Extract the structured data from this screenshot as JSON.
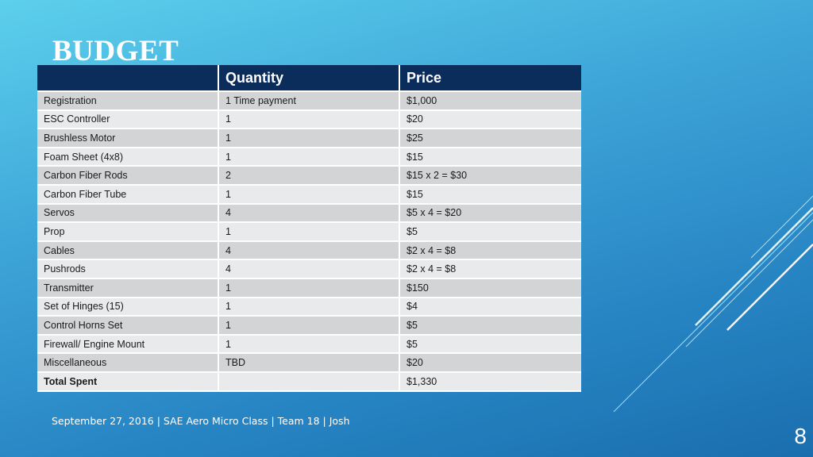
{
  "slide": {
    "title": "BUDGET",
    "footer": "September 27, 2016  |  SAE Aero Micro Class  |  Team 18 | Josh",
    "page_number": "8"
  },
  "table": {
    "headers": [
      "",
      "Quantity",
      "Price"
    ],
    "rows": [
      {
        "item": "Registration",
        "quantity": "1 Time payment",
        "price": "$1,000"
      },
      {
        "item": "ESC Controller",
        "quantity": "1",
        "price": "$20"
      },
      {
        "item": "Brushless Motor",
        "quantity": "1",
        "price": "$25"
      },
      {
        "item": "Foam Sheet (4x8)",
        "quantity": "1",
        "price": "$15"
      },
      {
        "item": "Carbon Fiber Rods",
        "quantity": "2",
        "price": "$15 x 2 = $30"
      },
      {
        "item": "Carbon Fiber Tube",
        "quantity": "1",
        "price": "$15"
      },
      {
        "item": "Servos",
        "quantity": "4",
        "price": "$5 x 4 = $20"
      },
      {
        "item": "Prop",
        "quantity": "1",
        "price": "$5"
      },
      {
        "item": "Cables",
        "quantity": "4",
        "price": "$2 x 4 = $8"
      },
      {
        "item": "Pushrods",
        "quantity": "4",
        "price": "$2 x 4 = $8"
      },
      {
        "item": "Transmitter",
        "quantity": "1",
        "price": "$150"
      },
      {
        "item": "Set of Hinges (15)",
        "quantity": "1",
        "price": "$4"
      },
      {
        "item": "Control Horns Set",
        "quantity": "1",
        "price": "$5"
      },
      {
        "item": "Firewall/ Engine Mount",
        "quantity": "1",
        "price": "$5"
      },
      {
        "item": "Miscellaneous",
        "quantity": "TBD",
        "price": "$20"
      }
    ],
    "total": {
      "item": "Total Spent",
      "quantity": "",
      "price": "$1,330"
    }
  },
  "colors": {
    "header_bg": "#0b2d5c",
    "row_odd": "#d3d4d6",
    "row_even": "#e9eaeb",
    "text_light": "#ffffff"
  }
}
